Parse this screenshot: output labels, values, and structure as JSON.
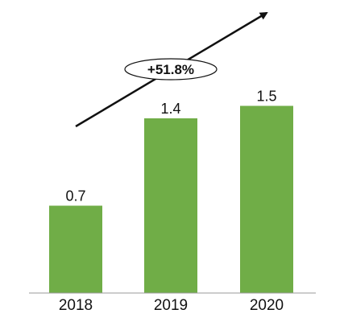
{
  "chart_data": {
    "type": "bar",
    "categories": [
      "2018",
      "2019",
      "2020"
    ],
    "values": [
      0.7,
      1.4,
      1.5
    ],
    "data_labels": [
      "0.7",
      "1.4",
      "1.5"
    ],
    "bar_color": "#70ad47",
    "ylim": [
      0,
      1.6
    ],
    "grid": false,
    "annotation": "+51.8%"
  }
}
